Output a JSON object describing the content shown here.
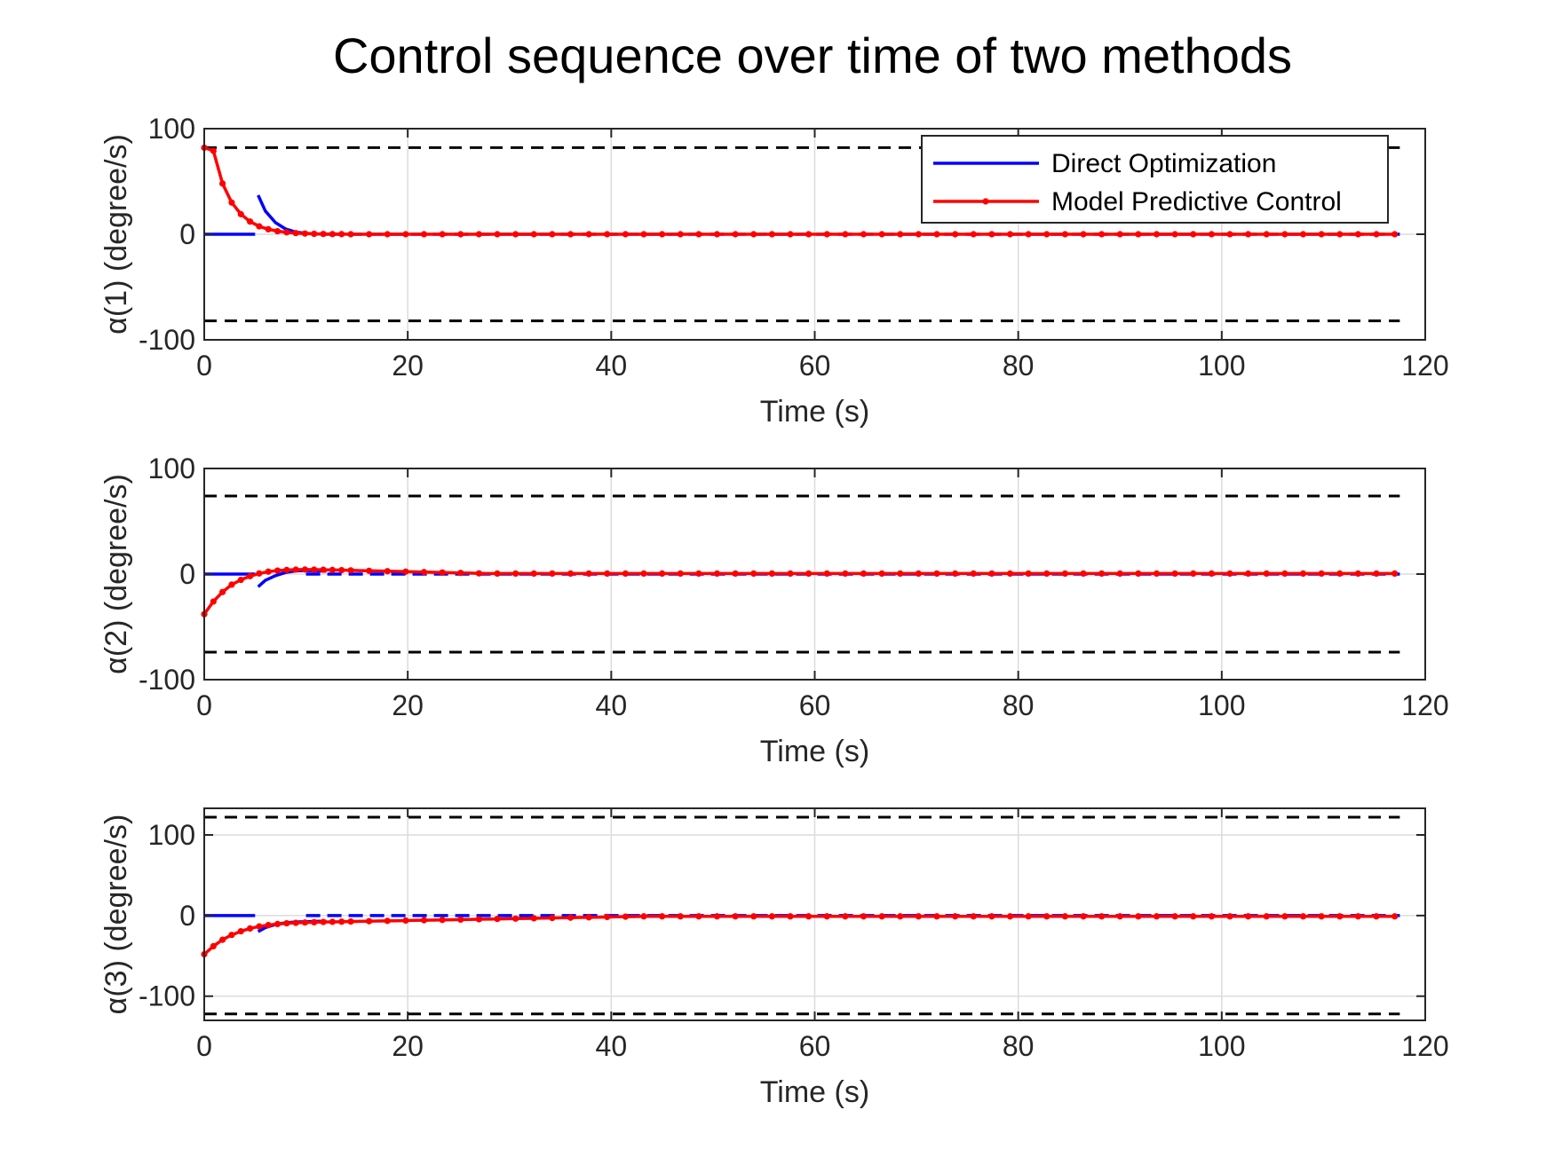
{
  "figure": {
    "title": "Control sequence over time of two methods"
  },
  "legend": {
    "placement": "top-right of first subplot",
    "entries": [
      {
        "label": "Direct Optimization",
        "color": "#0000ff",
        "marker": "none"
      },
      {
        "label": "Model Predictive Control",
        "color": "#ff0000",
        "marker": "dot"
      }
    ]
  },
  "chart_data": [
    {
      "type": "line",
      "xlabel": "Time (s)",
      "ylabel": "α(1) (degree/s)",
      "xlim": [
        0,
        120
      ],
      "ylim": [
        -100,
        100
      ],
      "xticks": [
        "0",
        "20",
        "40",
        "60",
        "80",
        "100",
        "120"
      ],
      "yticks": [
        {
          "v": -100,
          "label": "-100"
        },
        {
          "v": 0,
          "label": "0"
        },
        {
          "v": 100,
          "label": "100"
        }
      ],
      "grid": true,
      "bounds": [
        82,
        -82
      ],
      "series": [
        {
          "name": "Direct Optimization",
          "color": "#0000ff",
          "segments": [
            {
              "x": [
                0,
                5
              ],
              "y": [
                0,
                0
              ]
            },
            {
              "x": [
                5.3,
                6,
                7,
                8,
                9,
                10,
                11,
                12
              ],
              "y": [
                37,
                22,
                11,
                5,
                2,
                0.8,
                0.3,
                0
              ]
            },
            {
              "dashed": true,
              "x": [
                12,
                117.5
              ],
              "y": [
                0,
                0
              ]
            }
          ]
        },
        {
          "name": "Model Predictive Control",
          "color": "#ff0000",
          "x0": 0,
          "dx": 0.9,
          "n": 131,
          "y_head": [
            82,
            79,
            48,
            30,
            19,
            12,
            7.5,
            4.7,
            2.9,
            1.8,
            1.1,
            0.7,
            0.4,
            0.25,
            0.15,
            0.1
          ],
          "y_tail": 0
        }
      ]
    },
    {
      "type": "line",
      "xlabel": "Time (s)",
      "ylabel": "α(2) (degree/s)",
      "xlim": [
        0,
        120
      ],
      "ylim": [
        -100,
        100
      ],
      "xticks": [
        "0",
        "20",
        "40",
        "60",
        "80",
        "100",
        "120"
      ],
      "yticks": [
        {
          "v": -100,
          "label": "-100"
        },
        {
          "v": 0,
          "label": "0"
        },
        {
          "v": 100,
          "label": "100"
        }
      ],
      "grid": true,
      "bounds": [
        74,
        -74
      ],
      "series": [
        {
          "name": "Direct Optimization",
          "color": "#0000ff",
          "segments": [
            {
              "x": [
                0,
                5
              ],
              "y": [
                0,
                0
              ]
            },
            {
              "x": [
                5.3,
                6,
                7,
                8,
                9,
                10,
                11,
                12
              ],
              "y": [
                -12,
                -6,
                -1.5,
                1.5,
                3,
                3.4,
                3.2,
                2.8
              ]
            },
            {
              "dashed": true,
              "x": [
                10,
                117.5
              ],
              "y": [
                0,
                0
              ]
            }
          ]
        },
        {
          "name": "Model Predictive Control",
          "color": "#ff0000",
          "x0": 0,
          "dx": 0.9,
          "n": 131,
          "y_head": [
            -38,
            -26,
            -17,
            -10,
            -5.5,
            -2,
            0.6,
            2.3,
            3.3,
            3.9,
            4.2,
            4.3,
            4.2,
            4.1,
            3.9,
            3.7,
            3.5,
            3.3,
            3.1,
            2.9,
            2.7,
            2.5,
            2.3,
            2.1,
            1.9,
            1.7,
            1.5,
            1.3,
            1.1,
            0.9,
            0.7,
            0.5
          ],
          "y_tail": 0.5
        }
      ]
    },
    {
      "type": "line",
      "xlabel": "Time (s)",
      "ylabel": "α(3) (degree/s)",
      "xlim": [
        0,
        120
      ],
      "ylim": [
        -130,
        133
      ],
      "xticks": [
        "0",
        "20",
        "40",
        "60",
        "80",
        "100",
        "120"
      ],
      "yticks": [
        {
          "v": -100,
          "label": "-100"
        },
        {
          "v": 0,
          "label": "0"
        },
        {
          "v": 100,
          "label": "100"
        }
      ],
      "grid": true,
      "bounds": [
        122,
        -122
      ],
      "series": [
        {
          "name": "Direct Optimization",
          "color": "#0000ff",
          "segments": [
            {
              "x": [
                0,
                5
              ],
              "y": [
                0,
                0
              ]
            },
            {
              "x": [
                5.3,
                6,
                7,
                8,
                9,
                10,
                11,
                12
              ],
              "y": [
                -20,
                -15,
                -11,
                -9,
                -8,
                -7.5,
                -7.2,
                -7
              ]
            },
            {
              "dashed": true,
              "x": [
                10,
                117.5
              ],
              "y": [
                0,
                0
              ]
            }
          ]
        },
        {
          "name": "Model Predictive Control",
          "color": "#ff0000",
          "x0": 0,
          "dx": 0.9,
          "n": 131,
          "y_head": [
            -48,
            -38,
            -30,
            -24,
            -19.5,
            -16,
            -13.5,
            -11.8,
            -10.5,
            -9.6,
            -9,
            -8.6,
            -8.3,
            -8,
            -7.8,
            -7.6,
            -7.4,
            -7.2,
            -7,
            -6.8,
            -6.6,
            -6.4,
            -6.2,
            -6,
            -5.8,
            -5.6,
            -5.4,
            -5.2,
            -5,
            -4.8,
            -4.6,
            -4.4,
            -4.2,
            -4,
            -3.8,
            -3.6,
            -3.4,
            -3.2,
            -3,
            -2.8,
            -2.6,
            -2.4,
            -2.2,
            -2,
            -1.8,
            -1.6,
            -1.4,
            -1.2
          ],
          "y_tail": -1
        }
      ]
    }
  ]
}
